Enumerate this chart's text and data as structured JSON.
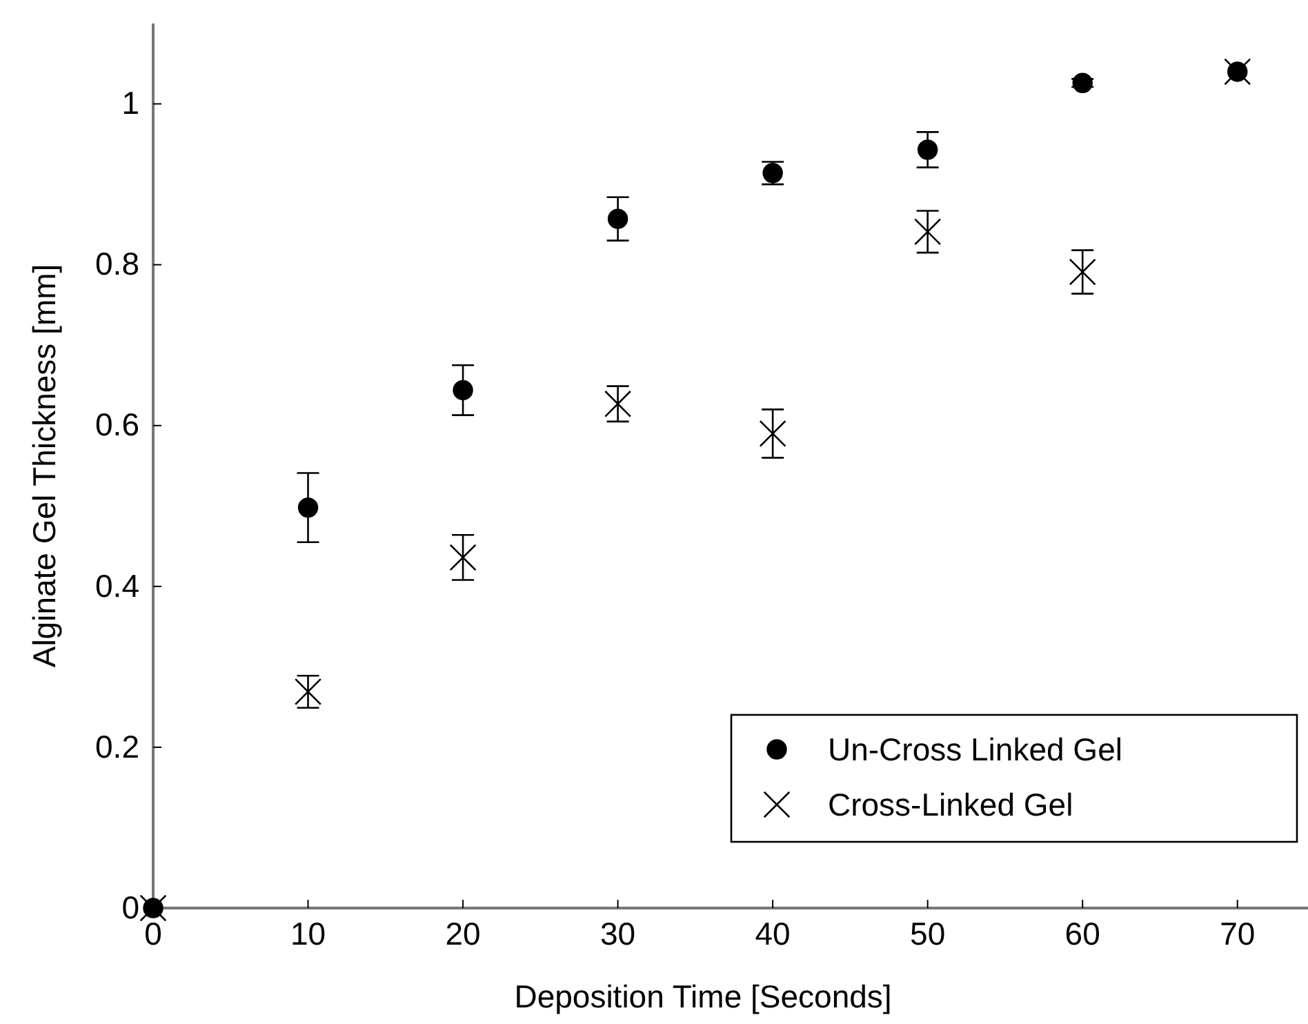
{
  "chart_data": {
    "type": "scatter",
    "xlabel": "Deposition Time [Seconds]",
    "ylabel": "Alginate Gel Thickness [mm]",
    "x": [
      0,
      10,
      20,
      30,
      40,
      50,
      60,
      70
    ],
    "xlim": [
      0,
      75
    ],
    "xticks": [
      0,
      10,
      20,
      30,
      40,
      50,
      60,
      70
    ],
    "ylim": [
      0,
      1.1
    ],
    "yticks": [
      0,
      0.2,
      0.4,
      0.6,
      0.8,
      1
    ],
    "legend": "bottom right",
    "grid": false,
    "series": [
      {
        "name": "Un-Cross Linked Gel",
        "color": "#000000",
        "marker": "circle",
        "values": [
          0,
          0.498,
          0.644,
          0.857,
          0.914,
          0.943,
          1.026,
          1.04
        ],
        "errors": [
          null,
          0.043,
          0.031,
          0.027,
          0.014,
          0.022,
          0.005,
          null
        ]
      },
      {
        "name": "Cross-Linked Gel",
        "color": "#000000",
        "marker": "cross",
        "values": [
          0,
          0.269,
          0.436,
          0.627,
          0.59,
          0.841,
          0.791,
          1.04
        ],
        "errors": [
          null,
          0.02,
          0.028,
          0.022,
          0.03,
          0.026,
          0.027,
          null
        ]
      }
    ]
  }
}
